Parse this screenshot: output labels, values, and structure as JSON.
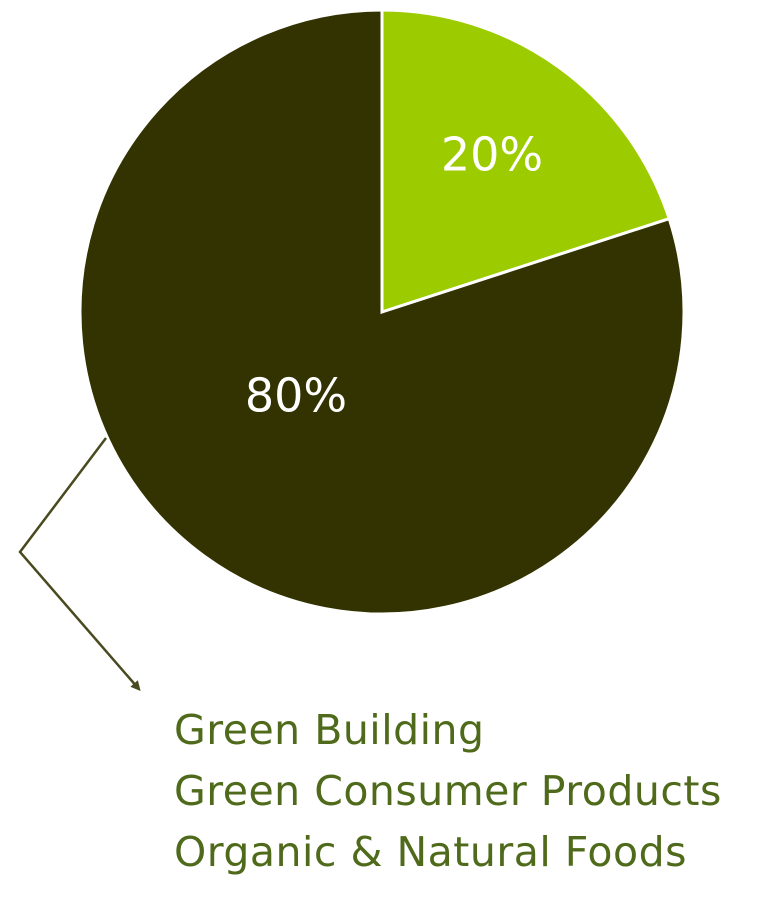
{
  "chart_data": {
    "type": "pie",
    "slices": [
      {
        "label": "20%",
        "value": 20,
        "color": "#9ccb00"
      },
      {
        "label": "80%",
        "value": 80,
        "color": "#323300"
      }
    ],
    "annotation": {
      "target_slice": "80%",
      "items": [
        "Green Building",
        "Green Consumer Products",
        "Organic & Natural Foods"
      ],
      "color": "#4e6a1a"
    }
  }
}
